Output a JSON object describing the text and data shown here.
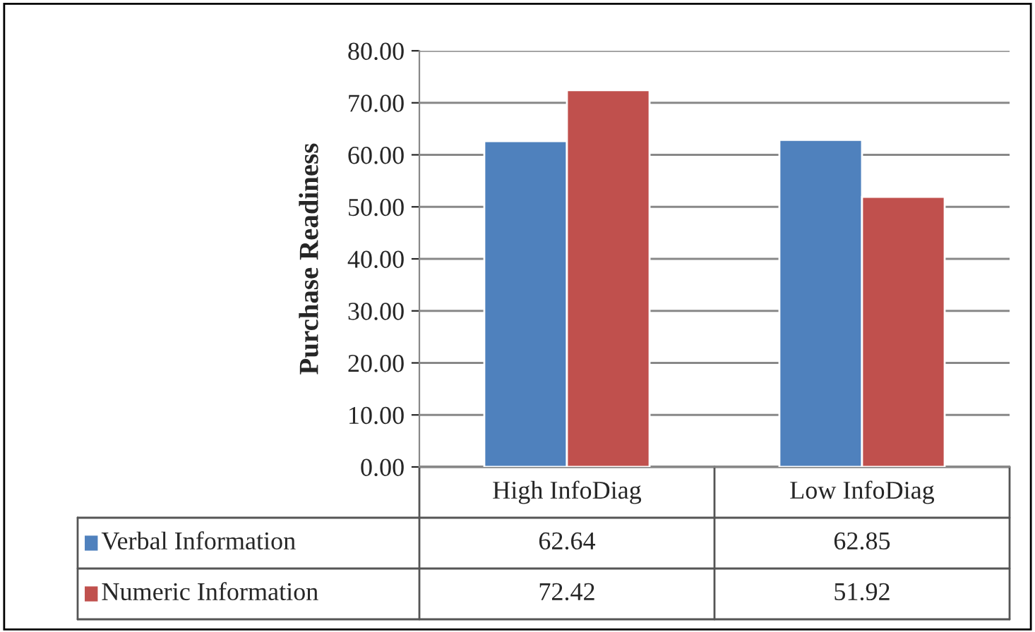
{
  "chart_data": {
    "type": "bar",
    "ylabel": "Purchase Readiness",
    "categories": [
      "High InfoDiag",
      "Low InfoDiag"
    ],
    "series": [
      {
        "name": "Verbal Information",
        "color": "#4f81bd",
        "values": [
          62.64,
          62.85
        ]
      },
      {
        "name": "Numeric Information",
        "color": "#c0504d",
        "values": [
          72.42,
          51.92
        ]
      }
    ],
    "ylim": [
      0,
      80
    ],
    "yticks": [
      {
        "value": 0,
        "label": "0.00"
      },
      {
        "value": 10,
        "label": "10.00"
      },
      {
        "value": 20,
        "label": "20.00"
      },
      {
        "value": 30,
        "label": "30.00"
      },
      {
        "value": 40,
        "label": "40.00"
      },
      {
        "value": 50,
        "label": "50.00"
      },
      {
        "value": 60,
        "label": "60.00"
      },
      {
        "value": 70,
        "label": "70.00"
      },
      {
        "value": 80,
        "label": "80.00"
      }
    ],
    "grid": "y",
    "data_labels": true,
    "legend": "bottom left"
  }
}
